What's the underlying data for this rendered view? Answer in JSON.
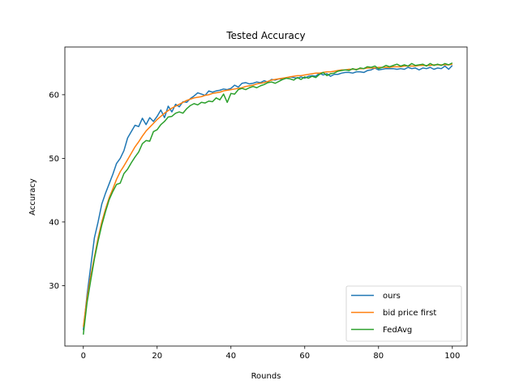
{
  "chart_data": {
    "type": "line",
    "title": "Tested Accuracy",
    "xlabel": "Rounds",
    "ylabel": "Accuracy",
    "xlim": [
      -5,
      104
    ],
    "ylim": [
      20.5,
      67.5
    ],
    "xticks": [
      0,
      20,
      40,
      60,
      80,
      100
    ],
    "yticks": [
      30,
      40,
      50,
      60
    ],
    "grid": false,
    "legend_position": "lower-right",
    "series": [
      {
        "name": "ours",
        "color": "#1f77b4",
        "x": [
          0,
          1,
          2,
          3,
          4,
          5,
          6,
          7,
          8,
          9,
          10,
          11,
          12,
          13,
          14,
          15,
          16,
          17,
          18,
          19,
          20,
          21,
          22,
          23,
          24,
          25,
          26,
          27,
          28,
          29,
          30,
          31,
          32,
          33,
          34,
          35,
          36,
          37,
          38,
          39,
          40,
          41,
          42,
          43,
          44,
          45,
          46,
          47,
          48,
          49,
          50,
          51,
          52,
          53,
          54,
          55,
          56,
          57,
          58,
          59,
          60,
          61,
          62,
          63,
          64,
          65,
          66,
          67,
          68,
          69,
          70,
          71,
          72,
          73,
          74,
          75,
          76,
          77,
          78,
          79,
          80,
          81,
          82,
          83,
          84,
          85,
          86,
          87,
          88,
          89,
          90,
          91,
          92,
          93,
          94,
          95,
          96,
          97,
          98,
          99,
          100
        ],
        "values": [
          23.0,
          28.5,
          33.0,
          37.5,
          40.0,
          42.8,
          44.5,
          46.0,
          47.5,
          49.2,
          50.0,
          51.2,
          53.2,
          54.2,
          55.2,
          55.0,
          56.3,
          55.3,
          56.4,
          55.8,
          56.6,
          57.6,
          56.4,
          58.2,
          57.3,
          58.5,
          58.1,
          58.9,
          58.8,
          59.4,
          59.8,
          60.3,
          60.1,
          59.9,
          60.6,
          60.4,
          60.6,
          60.7,
          60.9,
          60.8,
          61.0,
          61.5,
          61.2,
          61.8,
          61.9,
          61.7,
          61.8,
          62.0,
          61.9,
          62.2,
          62.0,
          62.4,
          62.3,
          62.5,
          62.4,
          62.6,
          62.8,
          62.7,
          62.6,
          62.8,
          62.6,
          62.9,
          63.0,
          62.9,
          63.4,
          63.1,
          63.3,
          62.9,
          63.2,
          63.2,
          63.4,
          63.5,
          63.5,
          63.4,
          63.6,
          63.6,
          63.5,
          63.8,
          63.9,
          64.2,
          63.9,
          64.0,
          64.1,
          64.1,
          64.1,
          64.0,
          64.1,
          64.0,
          64.3,
          64.1,
          64.2,
          63.9,
          64.2,
          64.1,
          64.3,
          64.0,
          64.2,
          64.1,
          64.5,
          64.0,
          64.6
        ]
      },
      {
        "name": "bid price first",
        "color": "#ff7f0e",
        "x": [
          0,
          1,
          2,
          3,
          4,
          5,
          6,
          7,
          8,
          9,
          10,
          11,
          12,
          13,
          14,
          15,
          16,
          17,
          18,
          19,
          20,
          21,
          22,
          23,
          24,
          25,
          26,
          27,
          28,
          29,
          30,
          31,
          32,
          33,
          34,
          35,
          36,
          37,
          38,
          39,
          40,
          41,
          42,
          43,
          44,
          45,
          46,
          47,
          48,
          49,
          50,
          51,
          52,
          53,
          54,
          55,
          56,
          57,
          58,
          59,
          60,
          61,
          62,
          63,
          64,
          65,
          66,
          67,
          68,
          69,
          70,
          71,
          72,
          73,
          74,
          75,
          76,
          77,
          78,
          79,
          80,
          81,
          82,
          83,
          84,
          85,
          86,
          87,
          88,
          89,
          90,
          91,
          92,
          93,
          94,
          95,
          96,
          97,
          98,
          99,
          100
        ],
        "values": [
          23.5,
          28.0,
          31.5,
          34.5,
          37.5,
          40.0,
          42.0,
          43.8,
          45.2,
          46.7,
          47.9,
          48.8,
          49.8,
          50.8,
          51.8,
          52.6,
          53.5,
          54.3,
          54.9,
          55.5,
          56.1,
          56.6,
          57.1,
          57.5,
          57.9,
          58.2,
          58.5,
          58.8,
          59.1,
          59.3,
          59.5,
          59.6,
          59.7,
          59.9,
          60.0,
          60.2,
          60.3,
          60.4,
          60.6,
          60.7,
          60.8,
          60.9,
          61.0,
          61.1,
          61.3,
          61.4,
          61.5,
          61.7,
          61.8,
          61.9,
          62.1,
          62.3,
          62.4,
          62.5,
          62.6,
          62.7,
          62.8,
          62.9,
          63.0,
          63.0,
          63.1,
          63.2,
          63.3,
          63.4,
          63.4,
          63.5,
          63.6,
          63.6,
          63.7,
          63.8,
          63.9,
          63.9,
          64.0,
          64.0,
          64.0,
          64.1,
          64.1,
          64.2,
          64.2,
          64.2,
          64.3,
          64.3,
          64.3,
          64.3,
          64.4,
          64.4,
          64.4,
          64.5,
          64.5,
          64.5,
          64.5,
          64.6,
          64.6,
          64.6,
          64.6,
          64.7,
          64.7,
          64.7,
          64.7,
          64.7,
          64.8
        ]
      },
      {
        "name": "FedAvg",
        "color": "#2ca02c",
        "x": [
          0,
          1,
          2,
          3,
          4,
          5,
          6,
          7,
          8,
          9,
          10,
          11,
          12,
          13,
          14,
          15,
          16,
          17,
          18,
          19,
          20,
          21,
          22,
          23,
          24,
          25,
          26,
          27,
          28,
          29,
          30,
          31,
          32,
          33,
          34,
          35,
          36,
          37,
          38,
          39,
          40,
          41,
          42,
          43,
          44,
          45,
          46,
          47,
          48,
          49,
          50,
          51,
          52,
          53,
          54,
          55,
          56,
          57,
          58,
          59,
          60,
          61,
          62,
          63,
          64,
          65,
          66,
          67,
          68,
          69,
          70,
          71,
          72,
          73,
          74,
          75,
          76,
          77,
          78,
          79,
          80,
          81,
          82,
          83,
          84,
          85,
          86,
          87,
          88,
          89,
          90,
          91,
          92,
          93,
          94,
          95,
          96,
          97,
          98,
          99,
          100
        ],
        "values": [
          22.3,
          27.3,
          30.8,
          34.2,
          37.0,
          39.5,
          41.6,
          43.5,
          44.8,
          45.9,
          46.1,
          47.6,
          48.3,
          49.3,
          50.2,
          51.0,
          52.3,
          52.8,
          52.7,
          54.2,
          54.5,
          55.3,
          55.8,
          56.5,
          56.6,
          57.1,
          57.3,
          57.1,
          57.8,
          58.3,
          58.6,
          58.4,
          58.8,
          58.7,
          59.0,
          58.9,
          59.5,
          59.2,
          60.1,
          58.8,
          60.2,
          60.1,
          60.8,
          61.0,
          60.8,
          61.1,
          61.3,
          61.1,
          61.4,
          61.6,
          61.9,
          62.0,
          61.8,
          62.1,
          62.4,
          62.6,
          62.5,
          62.3,
          62.7,
          62.4,
          62.8,
          62.6,
          62.9,
          62.7,
          63.2,
          63.5,
          63.0,
          63.3,
          63.4,
          63.7,
          63.8,
          63.9,
          63.8,
          64.1,
          63.9,
          64.2,
          64.1,
          64.4,
          64.3,
          64.5,
          64.1,
          64.3,
          64.6,
          64.4,
          64.6,
          64.8,
          64.5,
          64.7,
          64.5,
          64.9,
          64.6,
          64.7,
          64.8,
          64.5,
          64.9,
          64.6,
          64.8,
          64.6,
          64.9,
          64.7,
          65.0
        ]
      }
    ]
  }
}
